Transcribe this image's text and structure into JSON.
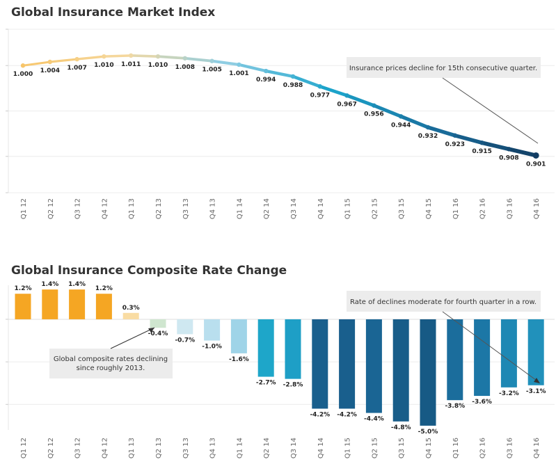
{
  "chart_data": [
    {
      "type": "line",
      "title": "Global Insurance Market Index",
      "categories": [
        "Q1 12",
        "Q2 12",
        "Q3 12",
        "Q4 12",
        "Q1 13",
        "Q2 13",
        "Q3 13",
        "Q4 13",
        "Q1 14",
        "Q2 14",
        "Q3 14",
        "Q4 14",
        "Q1 15",
        "Q2 15",
        "Q3 15",
        "Q4 15",
        "Q1 16",
        "Q2 16",
        "Q3 16",
        "Q4 16"
      ],
      "values": [
        1.0,
        1.004,
        1.007,
        1.01,
        1.011,
        1.01,
        1.008,
        1.005,
        1.001,
        0.994,
        0.988,
        0.977,
        0.967,
        0.956,
        0.944,
        0.932,
        0.923,
        0.915,
        0.908,
        0.901
      ],
      "value_labels": [
        "1.000",
        "1.004",
        "1.007",
        "1.010",
        "1.011",
        "1.010",
        "1.008",
        "1.005",
        "1.001",
        "0.994",
        "0.988",
        "0.977",
        "0.967",
        "0.956",
        "0.944",
        "0.932",
        "0.923",
        "0.915",
        "0.908",
        "0.901"
      ],
      "ylim": [
        0.86,
        1.04
      ],
      "grid": true,
      "annotation": "Insurance prices decline for 15th consecutive quarter."
    },
    {
      "type": "bar",
      "title": "Global Insurance Composite Rate Change",
      "categories": [
        "Q1 12",
        "Q2 12",
        "Q3 12",
        "Q4 12",
        "Q1 13",
        "Q2 13",
        "Q3 13",
        "Q4 13",
        "Q1 14",
        "Q2 14",
        "Q3 14",
        "Q4 14",
        "Q1 15",
        "Q2 15",
        "Q3 15",
        "Q4 15",
        "Q1 16",
        "Q2 16",
        "Q3 16",
        "Q4 16"
      ],
      "values": [
        1.2,
        1.4,
        1.4,
        1.2,
        0.3,
        -0.4,
        -0.7,
        -1.0,
        -1.6,
        -2.7,
        -2.8,
        -4.2,
        -4.2,
        -4.4,
        -4.8,
        -5.0,
        -3.8,
        -3.6,
        -3.2,
        -3.1
      ],
      "value_labels": [
        "1.2%",
        "1.4%",
        "1.4%",
        "1.2%",
        "0.3%",
        "-0.4%",
        "-0.7%",
        "-1.0%",
        "-1.6%",
        "-2.7%",
        "-2.8%",
        "-4.2%",
        "-4.2%",
        "-4.4%",
        "-4.8%",
        "-5.0%",
        "-3.8%",
        "-3.6%",
        "-3.2%",
        "-3.1%"
      ],
      "ylim": [
        -5.2,
        1.6
      ],
      "grid": true,
      "annotations": [
        "Global composite rates declining since roughly 2013.",
        "Rate of declines moderate for fourth quarter in a row."
      ],
      "colors": [
        "#f5a623",
        "#f5a623",
        "#f5a623",
        "#f5a623",
        "#f9dca3",
        "#cfe6cf",
        "#cfe8f1",
        "#b9dfee",
        "#9fd4e8",
        "#1ea6c9",
        "#1e9fc6",
        "#195f8d",
        "#195f8d",
        "#1a6594",
        "#185d89",
        "#175a85",
        "#1b6d9c",
        "#1c77a6",
        "#1e88b4",
        "#2191bb"
      ]
    }
  ]
}
